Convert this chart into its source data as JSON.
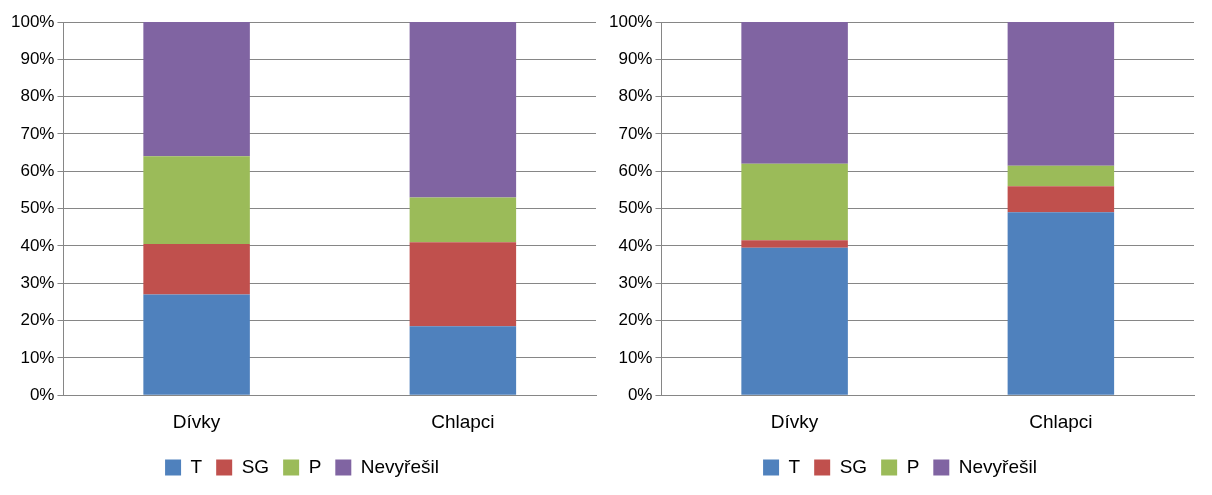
{
  "chart_data": [
    {
      "type": "bar",
      "stacked": true,
      "categories": [
        "Dívky",
        "Chlapci"
      ],
      "series": [
        {
          "name": "T",
          "color": "#4f81bd",
          "values": [
            27,
            18.5
          ]
        },
        {
          "name": "SG",
          "color": "#c0504d",
          "values": [
            13.5,
            22.5
          ]
        },
        {
          "name": "P",
          "color": "#9bbb59",
          "values": [
            23.5,
            12
          ]
        },
        {
          "name": "Nevyřešil",
          "color": "#8064a2",
          "values": [
            36,
            47
          ]
        }
      ],
      "ylim": [
        0,
        100
      ],
      "yticks": [
        {
          "value": 0,
          "label": "0%"
        },
        {
          "value": 10,
          "label": "10%"
        },
        {
          "value": 20,
          "label": "20%"
        },
        {
          "value": 30,
          "label": "30%"
        },
        {
          "value": 40,
          "label": "40%"
        },
        {
          "value": 50,
          "label": "50%"
        },
        {
          "value": 60,
          "label": "60%"
        },
        {
          "value": 70,
          "label": "70%"
        },
        {
          "value": 80,
          "label": "80%"
        },
        {
          "value": 90,
          "label": "90%"
        },
        {
          "value": 100,
          "label": "100%"
        }
      ],
      "grid": "y",
      "legend": "bottom"
    },
    {
      "type": "bar",
      "stacked": true,
      "categories": [
        "Dívky",
        "Chlapci"
      ],
      "series": [
        {
          "name": "T",
          "color": "#4f81bd",
          "values": [
            39.5,
            49
          ]
        },
        {
          "name": "SG",
          "color": "#c0504d",
          "values": [
            2,
            7
          ]
        },
        {
          "name": "P",
          "color": "#9bbb59",
          "values": [
            20.5,
            5.5
          ]
        },
        {
          "name": "Nevyřešil",
          "color": "#8064a2",
          "values": [
            38,
            38.5
          ]
        }
      ],
      "ylim": [
        0,
        100
      ],
      "yticks": [
        {
          "value": 0,
          "label": "0%"
        },
        {
          "value": 10,
          "label": "10%"
        },
        {
          "value": 20,
          "label": "20%"
        },
        {
          "value": 30,
          "label": "30%"
        },
        {
          "value": 40,
          "label": "40%"
        },
        {
          "value": 50,
          "label": "50%"
        },
        {
          "value": 60,
          "label": "60%"
        },
        {
          "value": 70,
          "label": "70%"
        },
        {
          "value": 80,
          "label": "80%"
        },
        {
          "value": 90,
          "label": "90%"
        },
        {
          "value": 100,
          "label": "100%"
        }
      ],
      "grid": "y",
      "legend": "bottom"
    }
  ]
}
